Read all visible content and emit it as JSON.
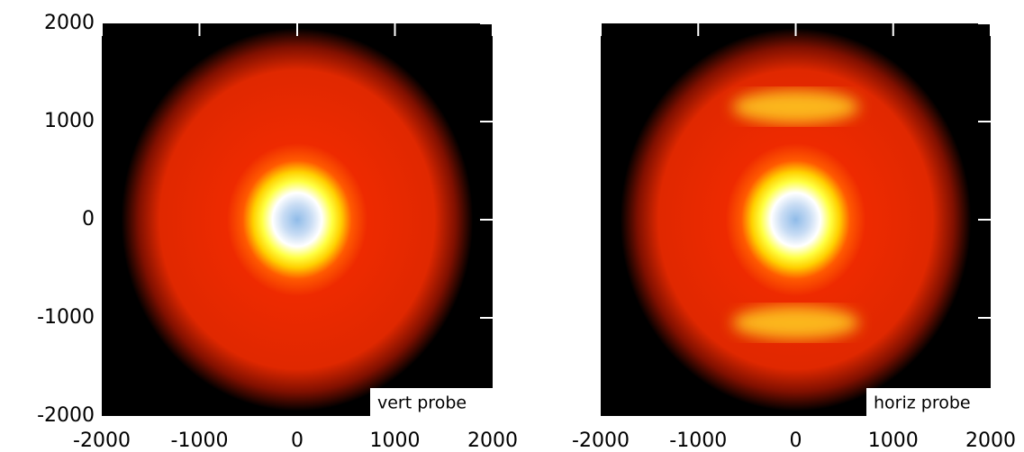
{
  "chart_data": [
    {
      "type": "image",
      "xlim": [
        -2000,
        2000
      ],
      "ylim": [
        -2000,
        2000
      ],
      "xticks": [
        -2000,
        -1000,
        0,
        1000,
        2000
      ],
      "yticks": [
        -2000,
        -1000,
        0,
        1000,
        2000
      ],
      "ytick_labels": true,
      "annotation": "vert probe",
      "bands": false
    },
    {
      "type": "image",
      "xlim": [
        -2000,
        2000
      ],
      "ylim": [
        -2000,
        2000
      ],
      "xticks": [
        -2000,
        -1000,
        0,
        1000,
        2000
      ],
      "yticks": [
        -2000,
        -1000,
        0,
        1000,
        2000
      ],
      "ytick_labels": false,
      "annotation": "horiz probe",
      "bands": true
    }
  ]
}
